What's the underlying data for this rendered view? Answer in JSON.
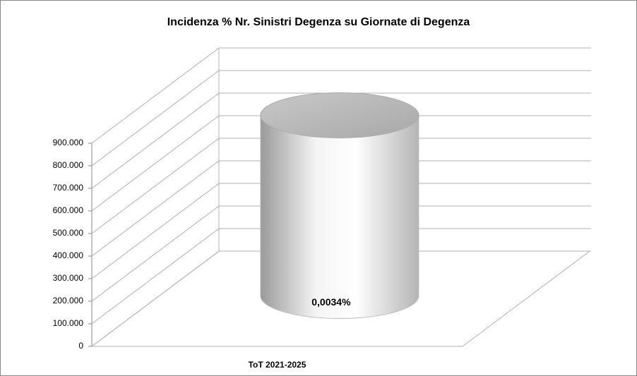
{
  "chart_data": {
    "type": "cylinder",
    "title": "Incidenza % Nr. Sinistri Degenza su Giornate di Degenza",
    "categories": [
      "ToT 2021-2025"
    ],
    "values": [
      800000
    ],
    "color": "#d9d9d9",
    "annotations": [
      "0,0034%"
    ],
    "ylim": [
      0,
      900000
    ],
    "yticks": [
      0,
      {
        "value": 100000,
        "label": "100.000"
      },
      {
        "value": 200000,
        "label": "200.000"
      },
      {
        "value": 300000,
        "label": "300.000"
      },
      {
        "value": 400000,
        "label": "400.000"
      },
      {
        "value": 500000,
        "label": "500.000"
      },
      {
        "value": 600000,
        "label": "600.000"
      },
      {
        "value": 700000,
        "label": "700.000"
      },
      {
        "value": 800000,
        "label": "800.000"
      },
      {
        "value": 900000,
        "label": "900.000"
      }
    ],
    "grid": true
  }
}
